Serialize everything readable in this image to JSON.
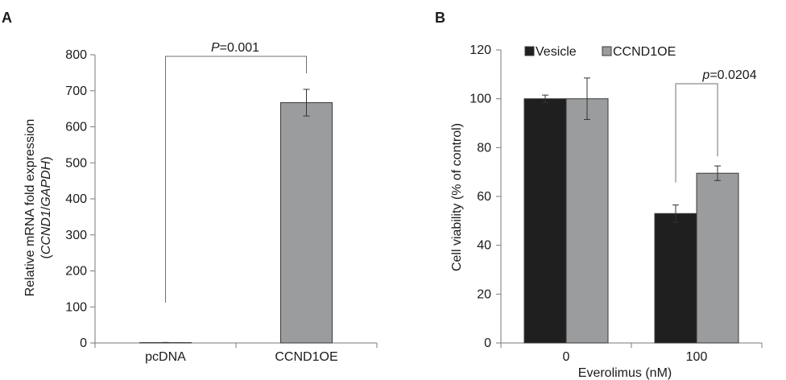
{
  "panels": [
    {
      "label": "A",
      "ylabel_line1": "Relative mRNA fold expression",
      "ylabel_line2_open": "(",
      "ylabel_line2_italic1": "CCND1",
      "ylabel_line2_sep": "/",
      "ylabel_line2_italic2": "GAPDH",
      "ylabel_line2_close": ")",
      "annotation_italic": "P",
      "annotation_rest": "=0.001"
    },
    {
      "label": "B",
      "ylabel": "Cell viability (% of control)",
      "xlabel": "Everolimus (nM)",
      "annotation_italic": "p",
      "annotation_rest": "=0.0204"
    }
  ],
  "chart_data": [
    {
      "type": "bar",
      "categories": [
        "pcDNA",
        "CCND1OE"
      ],
      "series": [
        {
          "values": [
            1,
            667
          ],
          "errors": [
            0.5,
            37
          ],
          "color": "#9b9c9e"
        }
      ],
      "ylabel": "Relative mRNA fold expression (CCND1/GAPDH)",
      "xlabel": "",
      "ylim": [
        0,
        800
      ],
      "yticks": [
        "0",
        "100",
        "200",
        "300",
        "400",
        "500",
        "600",
        "700",
        "800"
      ],
      "grid": false,
      "annotations": [
        {
          "text": "P=0.001",
          "between": [
            "pcDNA",
            "CCND1OE"
          ],
          "type": "significance-bracket"
        }
      ]
    },
    {
      "type": "bar",
      "categories": [
        "0",
        "100"
      ],
      "series": [
        {
          "name": "Vesicle",
          "values": [
            100,
            53
          ],
          "errors": [
            1.5,
            3.5
          ],
          "color": "#1f1f1f"
        },
        {
          "name": "CCND1OE",
          "values": [
            100,
            69.5
          ],
          "errors": [
            8.5,
            3
          ],
          "color": "#9b9c9e"
        }
      ],
      "xlabel": "Everolimus (nM)",
      "ylabel": "Cell viability (% of control)",
      "ylim": [
        0,
        120
      ],
      "yticks": [
        "0",
        "20",
        "40",
        "60",
        "80",
        "100",
        "120"
      ],
      "grid": false,
      "legend": "top",
      "annotations": [
        {
          "text": "p=0.0204",
          "between": [
            "Vesicle @ 100",
            "CCND1OE @ 100"
          ],
          "type": "significance-bracket"
        }
      ]
    }
  ]
}
